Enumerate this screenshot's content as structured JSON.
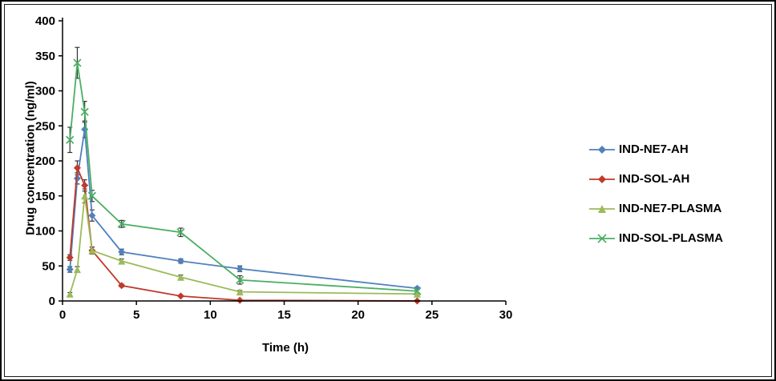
{
  "chart_data": {
    "type": "line",
    "title": "",
    "xlabel": "Time (h)",
    "ylabel": "Drug concentration (ng/ml)",
    "xlim": [
      0,
      30
    ],
    "ylim": [
      0,
      400
    ],
    "x_ticks": [
      0,
      5,
      10,
      15,
      20,
      25,
      30
    ],
    "y_ticks": [
      0,
      50,
      100,
      150,
      200,
      250,
      300,
      350,
      400
    ],
    "grid": false,
    "legend_position": "right",
    "error_bar_color": "#333333",
    "x": [
      0.5,
      1,
      1.5,
      2,
      4,
      8,
      12,
      24
    ],
    "series": [
      {
        "name": "IND-NE7-AH",
        "color": "#4F81BD",
        "marker": "diamond",
        "values": [
          45,
          175,
          245,
          122,
          70,
          57,
          46,
          18
        ],
        "errors": [
          4,
          8,
          12,
          8,
          4,
          3,
          4,
          2
        ]
      },
      {
        "name": "IND-SOL-AH",
        "color": "#C0392B",
        "marker": "diamond",
        "values": [
          62,
          190,
          165,
          72,
          22,
          7,
          1,
          0
        ],
        "errors": [
          4,
          10,
          8,
          5,
          2,
          1,
          1,
          0
        ]
      },
      {
        "name": "IND-NE7-PLASMA",
        "color": "#9BBB59",
        "marker": "triangle",
        "values": [
          10,
          45,
          150,
          72,
          57,
          34,
          13,
          10
        ],
        "errors": [
          2,
          4,
          10,
          5,
          3,
          3,
          2,
          1
        ]
      },
      {
        "name": "IND-SOL-PLASMA",
        "color": "#4BAE64",
        "marker": "x",
        "values": [
          230,
          340,
          270,
          150,
          110,
          98,
          30,
          14
        ],
        "errors": [
          18,
          22,
          15,
          8,
          5,
          6,
          6,
          2
        ]
      }
    ]
  }
}
